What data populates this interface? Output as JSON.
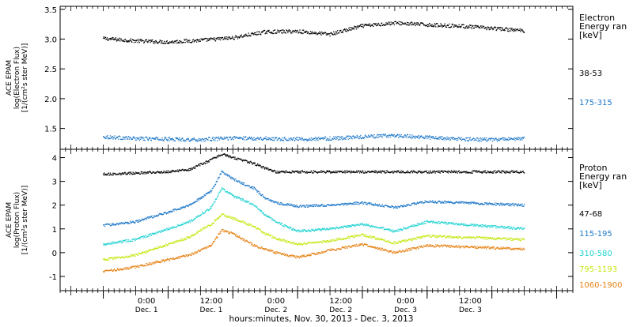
{
  "chart_data": [
    {
      "type": "scatter",
      "panel": "electron",
      "ylabel_lines": [
        "ACE EPAM",
        "log(Electron Flux)",
        "[1/(cm²s ster MeV)]"
      ],
      "ylim": [
        1.15,
        3.55
      ],
      "yticks": [
        "3.5",
        "3.0",
        "2.5",
        "2.0",
        "1.5"
      ],
      "ytick_values": [
        3.5,
        3.0,
        2.5,
        2.0,
        1.5
      ],
      "legend_title_lines": [
        "Electron",
        "Energy ran",
        "[keV]"
      ],
      "series": [
        {
          "name": "38-53",
          "color": "#000000",
          "x": [
            0,
            6,
            12,
            18,
            24,
            30,
            36,
            42,
            48,
            54,
            60,
            66,
            72,
            78
          ],
          "values": [
            3.01,
            2.97,
            2.95,
            2.98,
            3.02,
            3.12,
            3.13,
            3.08,
            3.22,
            3.27,
            3.24,
            3.22,
            3.18,
            3.14
          ]
        },
        {
          "name": "175-315",
          "color": "#1e78c8",
          "x": [
            0,
            6,
            12,
            18,
            24,
            30,
            36,
            42,
            48,
            54,
            60,
            66,
            72,
            78
          ],
          "values": [
            1.36,
            1.33,
            1.32,
            1.31,
            1.34,
            1.33,
            1.32,
            1.33,
            1.36,
            1.38,
            1.35,
            1.32,
            1.31,
            1.33
          ]
        }
      ]
    },
    {
      "type": "scatter",
      "panel": "proton",
      "ylabel_lines": [
        "ACE EPAM",
        "log(Proton Flux)",
        "[1/(cm²s ster MeV)]"
      ],
      "ylim": [
        -1.6,
        4.35
      ],
      "yticks": [
        "4",
        "3",
        "2",
        "1",
        "0",
        "-1"
      ],
      "ytick_values": [
        4,
        3,
        2,
        1,
        0,
        -1
      ],
      "legend_title_lines": [
        "Proton",
        "Energy ran",
        "[keV]"
      ],
      "series": [
        {
          "name": "47-68",
          "color": "#000000",
          "x": [
            0,
            6,
            12,
            16,
            20,
            22,
            24,
            28,
            30,
            32,
            36,
            42,
            48,
            60,
            72,
            78
          ],
          "values": [
            3.3,
            3.35,
            3.4,
            3.5,
            3.9,
            4.15,
            4.0,
            3.75,
            3.55,
            3.4,
            3.4,
            3.4,
            3.4,
            3.4,
            3.4,
            3.4
          ]
        },
        {
          "name": "115-195",
          "color": "#1e78c8",
          "x": [
            0,
            6,
            12,
            16,
            20,
            22,
            24,
            28,
            30,
            32,
            36,
            42,
            48,
            54,
            60,
            66,
            72,
            78
          ],
          "values": [
            1.15,
            1.3,
            1.7,
            2.0,
            2.6,
            3.4,
            3.1,
            2.7,
            2.3,
            2.1,
            1.95,
            2.0,
            2.1,
            1.9,
            2.15,
            2.1,
            2.05,
            2.0
          ]
        },
        {
          "name": "310-580",
          "color": "#22d2d2",
          "x": [
            0,
            6,
            12,
            16,
            20,
            22,
            24,
            28,
            30,
            32,
            36,
            42,
            48,
            54,
            60,
            66,
            72,
            78
          ],
          "values": [
            0.35,
            0.55,
            1.0,
            1.3,
            1.9,
            2.7,
            2.4,
            2.0,
            1.6,
            1.3,
            0.9,
            1.0,
            1.2,
            0.9,
            1.3,
            1.2,
            1.1,
            1.0
          ]
        },
        {
          "name": "795-1193",
          "color": "#c8e614",
          "x": [
            0,
            6,
            12,
            16,
            20,
            22,
            24,
            28,
            30,
            32,
            36,
            42,
            48,
            54,
            60,
            66,
            72,
            78
          ],
          "values": [
            -0.3,
            -0.1,
            0.35,
            0.65,
            1.2,
            1.6,
            1.45,
            1.1,
            0.8,
            0.6,
            0.35,
            0.5,
            0.75,
            0.4,
            0.7,
            0.65,
            0.6,
            0.55
          ]
        },
        {
          "name": "1060-1900",
          "color": "#e68214",
          "x": [
            0,
            6,
            12,
            16,
            20,
            22,
            24,
            28,
            30,
            32,
            36,
            42,
            48,
            54,
            60,
            66,
            72,
            78
          ],
          "values": [
            -0.8,
            -0.6,
            -0.3,
            -0.1,
            0.3,
            0.95,
            0.8,
            0.3,
            0.15,
            0.0,
            -0.2,
            0.1,
            0.35,
            0.0,
            0.3,
            0.25,
            0.2,
            0.15
          ]
        }
      ]
    }
  ],
  "x_axis": {
    "xlim": [
      -8,
      87
    ],
    "tick_positions_hours": [
      0,
      12,
      24,
      36,
      48,
      60,
      72,
      84
    ],
    "minor_step_hours": 1,
    "major_step_hours": 6,
    "tick_labels": [
      {
        "time": "0:00",
        "day": "Dec. 1"
      },
      {
        "time": "12:00",
        "day": "Dec. 1"
      },
      {
        "time": "0:00",
        "day": "Dec. 2"
      },
      {
        "time": "12:00",
        "day": "Dec. 2"
      },
      {
        "time": "0:00",
        "day": "Dec. 3"
      },
      {
        "time": "12:00",
        "day": "Dec. 3"
      }
    ],
    "label_hours": [
      8,
      20,
      32,
      44,
      56,
      68
    ],
    "xlabel": "hours:minutes, Nov. 30, 2013 - Dec. 3, 2013"
  }
}
